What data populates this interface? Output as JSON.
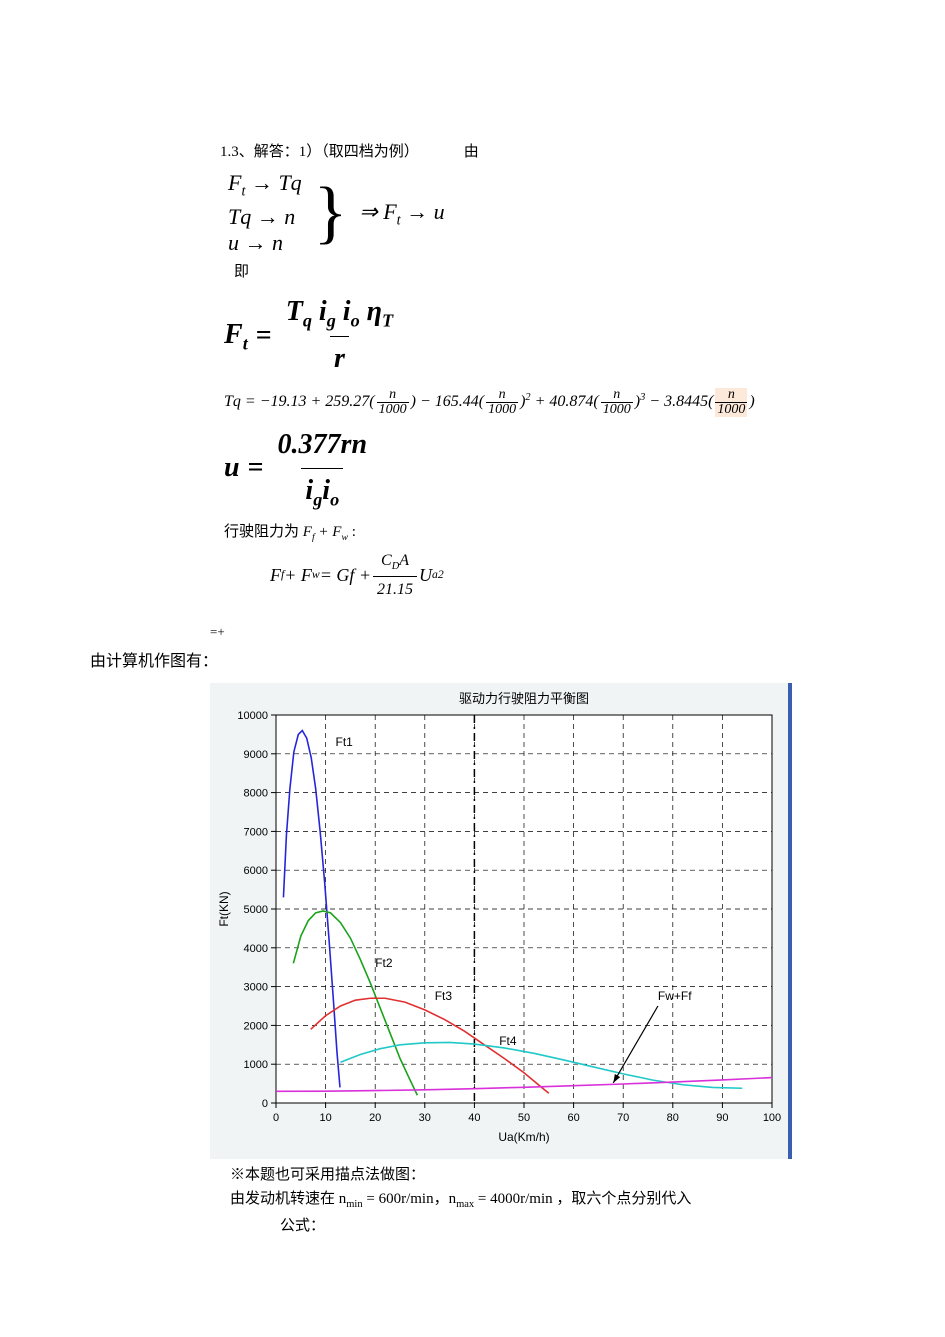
{
  "text": {
    "header": "1.3、解答：1）（取四档为例）   由",
    "brace_r1": "F",
    "brace_r1_sub": "t",
    "brace_r1_arrow": " → Tq",
    "brace_r2": "Tq → n",
    "brace_r3": "u → n",
    "imply": "⇒ F",
    "imply_sub": "t",
    "imply_tail": " → u",
    "ji": "即",
    "Ft_eq_lhs": "F",
    "Ft_eq_lhs_sub": "t",
    "Ft_eq_num": "T",
    "Ft_eq_num2": " i",
    "Ft_eq_num3": " i",
    "Ft_eq_num4": " η",
    "Ft_eq_den": "r",
    "Tq_line": "Tq = −19.13 + 259.27(",
    "Tq_frac_n": "n",
    "Tq_frac_d": "1000",
    "Tq_mid1": ") − 165.44(",
    "Tq_mid2": ")",
    "Tq_mid2b": " + 40.874(",
    "Tq_mid3": ")",
    "Tq_mid3b": " − 3.8445(",
    "Tq_end": ")",
    "u_eq_lhs": "u",
    "u_eq_num": "0.377rn",
    "u_eq_den": "i",
    "u_eq_den2": "i",
    "resist_label_pre": "行驶阻力为 ",
    "resist_label_math": "F",
    "resist_label_plus": " + F",
    "resist_label_colon": " :",
    "resist_eq": "F",
    "resist_eq_plus": " + F",
    "resist_eq_eq": " = Gf + ",
    "resist_frac_num": "C",
    "resist_frac_num2": "A",
    "resist_frac_den": "21.15",
    "resist_U": " U",
    "eqplus": "=+",
    "computer_line": "由计算机作图有：",
    "note1": "※本题也可采用描点法做图：",
    "note2_pre": "由发动机转速在 ",
    "note2_nmin": "n",
    "note2_nmin_val": " = 600r/min",
    "note2_sep": "，",
    "note2_nmax": "n",
    "note2_nmax_val": " = 4000r/min",
    "note2_tail": " ，取六个点分别代入",
    "note3": "公式："
  },
  "chart": {
    "title": "驱动力行驶阻力平衡图",
    "xlabel": "Ua(Km/h)",
    "ylabel": "Ft(KN)",
    "xlim": [
      0,
      100
    ],
    "ylim": [
      0,
      10000
    ],
    "xticks": [
      0,
      10,
      20,
      30,
      40,
      50,
      60,
      70,
      80,
      90,
      100
    ],
    "yticks": [
      0,
      1000,
      2000,
      3000,
      4000,
      5000,
      6000,
      7000,
      8000,
      9000,
      10000
    ],
    "vline_x": 40,
    "background": "#ffffff",
    "panel_bg": "#f0f4f5",
    "grid_color": "#000000",
    "axis_color": "#000000",
    "title_fontsize": 13,
    "label_fontsize": 12,
    "tick_fontsize": 11,
    "annot_fontsize": 12,
    "series": {
      "Ft1": {
        "color": "#2626d9",
        "width": 1.6,
        "label": "Ft1",
        "label_xy": [
          12,
          9200
        ],
        "points": [
          [
            1.5,
            5300
          ],
          [
            2.1,
            6900
          ],
          [
            2.8,
            8100
          ],
          [
            3.6,
            9050
          ],
          [
            4.5,
            9500
          ],
          [
            5.3,
            9600
          ],
          [
            6.2,
            9400
          ],
          [
            7.1,
            8900
          ],
          [
            8.0,
            8100
          ],
          [
            8.9,
            7000
          ],
          [
            9.8,
            5700
          ],
          [
            10.7,
            4200
          ],
          [
            11.6,
            2600
          ],
          [
            12.3,
            1300
          ],
          [
            12.9,
            400
          ]
        ]
      },
      "Ft2": {
        "color": "#1aa31a",
        "width": 1.6,
        "label": "Ft2",
        "label_xy": [
          20,
          3500
        ],
        "points": [
          [
            3.5,
            3600
          ],
          [
            5.0,
            4300
          ],
          [
            6.5,
            4700
          ],
          [
            8.0,
            4900
          ],
          [
            9.5,
            4950
          ],
          [
            11,
            4900
          ],
          [
            13,
            4650
          ],
          [
            15,
            4250
          ],
          [
            17,
            3700
          ],
          [
            19,
            3100
          ],
          [
            21,
            2450
          ],
          [
            23,
            1800
          ],
          [
            25,
            1150
          ],
          [
            27,
            600
          ],
          [
            28.5,
            200
          ]
        ]
      },
      "Ft3": {
        "color": "#e03030",
        "width": 1.6,
        "label": "Ft3",
        "label_xy": [
          32,
          2650
        ],
        "points": [
          [
            7,
            1900
          ],
          [
            10,
            2250
          ],
          [
            13,
            2500
          ],
          [
            16,
            2650
          ],
          [
            19,
            2700
          ],
          [
            22,
            2700
          ],
          [
            26,
            2600
          ],
          [
            30,
            2400
          ],
          [
            34,
            2150
          ],
          [
            38,
            1850
          ],
          [
            42,
            1500
          ],
          [
            46,
            1150
          ],
          [
            50,
            780
          ],
          [
            53,
            460
          ],
          [
            55,
            250
          ]
        ]
      },
      "Ft4": {
        "color": "#20c8c8",
        "width": 1.6,
        "label": "Ft4",
        "label_xy": [
          45,
          1500
        ],
        "points": [
          [
            13,
            1050
          ],
          [
            17,
            1250
          ],
          [
            21,
            1400
          ],
          [
            25,
            1500
          ],
          [
            30,
            1550
          ],
          [
            35,
            1560
          ],
          [
            40,
            1520
          ],
          [
            46,
            1420
          ],
          [
            52,
            1280
          ],
          [
            58,
            1110
          ],
          [
            64,
            930
          ],
          [
            70,
            750
          ],
          [
            76,
            590
          ],
          [
            82,
            470
          ],
          [
            88,
            400
          ],
          [
            94,
            380
          ]
        ]
      },
      "FwFf": {
        "color": "#d930d9",
        "width": 1.6,
        "label": "Fw+Ff",
        "label_xy": [
          77,
          2650
        ],
        "arrow_from": [
          77,
          2500
        ],
        "arrow_to": [
          68,
          520
        ],
        "points": [
          [
            0,
            300
          ],
          [
            10,
            305
          ],
          [
            20,
            320
          ],
          [
            30,
            340
          ],
          [
            40,
            370
          ],
          [
            50,
            405
          ],
          [
            60,
            445
          ],
          [
            70,
            490
          ],
          [
            80,
            540
          ],
          [
            90,
            595
          ],
          [
            100,
            655
          ]
        ]
      }
    }
  }
}
